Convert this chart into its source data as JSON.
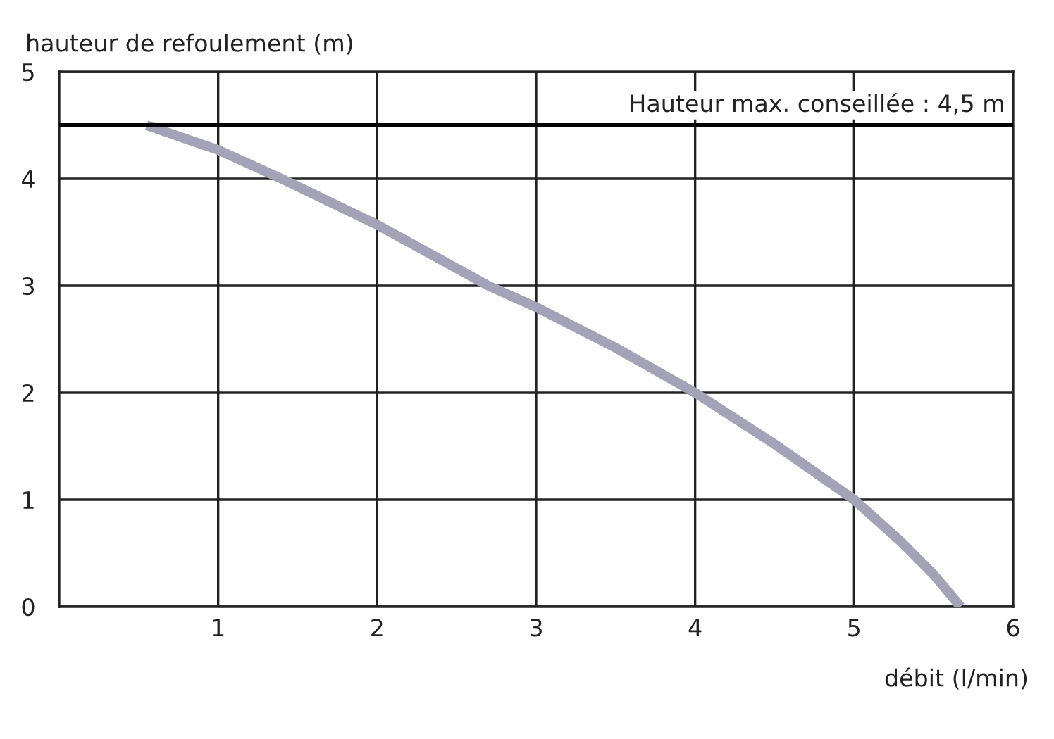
{
  "chart_data": {
    "type": "line",
    "xlabel": "débit (l/min)",
    "ylabel": "hauteur de refoulement (m)",
    "xlim": [
      0,
      6
    ],
    "ylim": [
      0,
      5
    ],
    "xticks": [
      1,
      2,
      3,
      4,
      5,
      6
    ],
    "yticks": [
      0,
      1,
      2,
      3,
      4,
      5
    ],
    "grid": true,
    "marker": "none",
    "line_style": "solid",
    "series": [
      {
        "color": "#a3a2b6",
        "x": [
          0.55,
          1,
          1.4,
          2,
          2.7,
          3,
          3.5,
          4,
          4.5,
          5,
          5.3,
          5.5,
          5.67
        ],
        "values": [
          4.5,
          4.27,
          4.0,
          3.57,
          3.0,
          2.8,
          2.42,
          2.0,
          1.52,
          1.0,
          0.6,
          0.3,
          0
        ]
      }
    ],
    "ref_lines": [
      {
        "axis": "y",
        "value": 4.5,
        "label": "Hauteur max. conseillée : 4,5 m",
        "color": "#000000"
      }
    ]
  }
}
